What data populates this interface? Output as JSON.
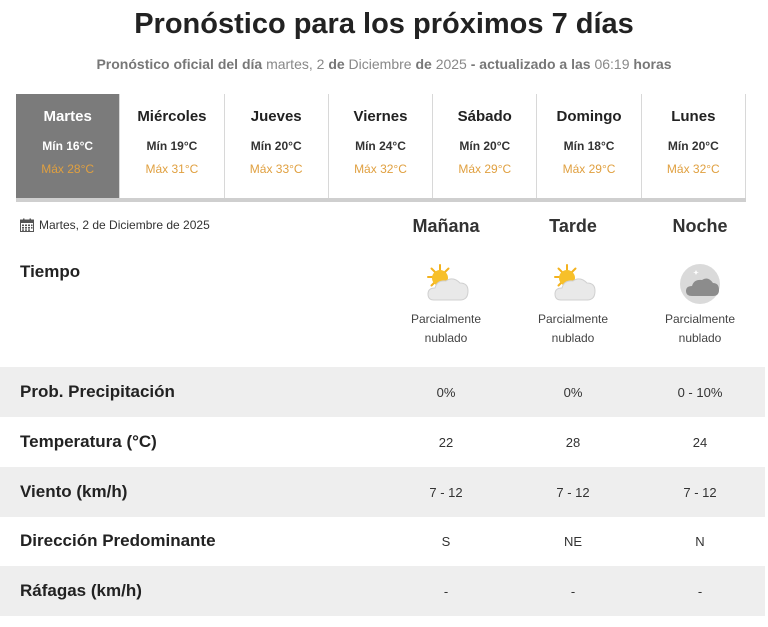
{
  "header": {
    "title": "Pronóstico para los próximos 7 días",
    "subtitle_prefix": "Pronóstico oficial del día",
    "subtitle_day": "martes, 2",
    "subtitle_de1": "de",
    "subtitle_month": "Diciembre",
    "subtitle_de2": "de",
    "subtitle_year": "2025",
    "subtitle_updated": "- actualizado a las",
    "subtitle_time": "06:19",
    "subtitle_hours": "horas"
  },
  "days": [
    {
      "name": "Martes",
      "min": "Mín 16°C",
      "max": "Máx 28°C",
      "active": true
    },
    {
      "name": "Miércoles",
      "min": "Mín 19°C",
      "max": "Máx 31°C"
    },
    {
      "name": "Jueves",
      "min": "Mín 20°C",
      "max": "Máx 33°C"
    },
    {
      "name": "Viernes",
      "min": "Mín 24°C",
      "max": "Máx 32°C"
    },
    {
      "name": "Sábado",
      "min": "Mín 20°C",
      "max": "Máx 29°C"
    },
    {
      "name": "Domingo",
      "min": "Mín 18°C",
      "max": "Máx 29°C"
    },
    {
      "name": "Lunes",
      "min": "Mín 20°C",
      "max": "Máx 32°C"
    }
  ],
  "detail": {
    "date": "Martes, 2 de Diciembre de 2025",
    "periods": [
      "Mañana",
      "Tarde",
      "Noche"
    ],
    "tiempo_label": "Tiempo",
    "weather": [
      {
        "icon": "partly-cloudy-day-icon",
        "line1": "Parcialmente",
        "line2": "nublado"
      },
      {
        "icon": "partly-cloudy-day-icon",
        "line1": "Parcialmente",
        "line2": "nublado"
      },
      {
        "icon": "partly-cloudy-night-icon",
        "line1": "Parcialmente",
        "line2": "nublado"
      }
    ],
    "rows": [
      {
        "label": "Prob. Precipitación",
        "values": [
          "0%",
          "0%",
          "0 - 10%"
        ]
      },
      {
        "label": "Temperatura (°C)",
        "values": [
          "22",
          "28",
          "24"
        ]
      },
      {
        "label": "Viento (km/h)",
        "values": [
          "7 - 12",
          "7 - 12",
          "7 - 12"
        ]
      },
      {
        "label": "Dirección Predominante",
        "values": [
          "S",
          "NE",
          "N"
        ]
      },
      {
        "label": "Ráfagas (km/h)",
        "values": [
          "-",
          "-",
          "-"
        ]
      }
    ]
  },
  "colors": {
    "active_day_bg": "#7b7b7b",
    "max_temp": "#e0a040",
    "row_shade": "#eeeeee"
  }
}
